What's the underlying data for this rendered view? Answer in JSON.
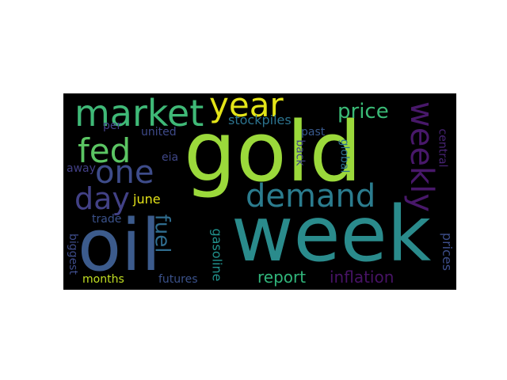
{
  "word_cloud": {
    "background": "#000000",
    "words": [
      {
        "text": "gold",
        "color": "#9bd93b"
      },
      {
        "text": "week",
        "color": "#2a8b8c"
      },
      {
        "text": "oil",
        "color": "#3c5b8c"
      },
      {
        "text": "market",
        "color": "#3fb977"
      },
      {
        "text": "fed",
        "color": "#5bc563"
      },
      {
        "text": "year",
        "color": "#e3e418"
      },
      {
        "text": "one",
        "color": "#3e4c8a"
      },
      {
        "text": "demand",
        "color": "#2b7c8e"
      },
      {
        "text": "weekly",
        "color": "#48186a"
      },
      {
        "text": "day",
        "color": "#424186"
      },
      {
        "text": "price",
        "color": "#3aba76"
      },
      {
        "text": "fuel",
        "color": "#2f6c8e"
      },
      {
        "text": "report",
        "color": "#31b57b"
      },
      {
        "text": "inflation",
        "color": "#471365"
      },
      {
        "text": "stockpiles",
        "color": "#2c738e"
      },
      {
        "text": "june",
        "color": "#e5e419"
      },
      {
        "text": "united",
        "color": "#3e4a89"
      },
      {
        "text": "past",
        "color": "#38598c"
      },
      {
        "text": "per",
        "color": "#424186"
      },
      {
        "text": "eia",
        "color": "#3f4788"
      },
      {
        "text": "away",
        "color": "#423f85"
      },
      {
        "text": "trade",
        "color": "#3b528b"
      },
      {
        "text": "biggest",
        "color": "#3e4c8a"
      },
      {
        "text": "months",
        "color": "#c2df23"
      },
      {
        "text": "futures",
        "color": "#3b528b"
      },
      {
        "text": "gasoline",
        "color": "#21918c"
      },
      {
        "text": "back",
        "color": "#414487"
      },
      {
        "text": "global",
        "color": "#2d708e"
      },
      {
        "text": "central",
        "color": "#482475"
      },
      {
        "text": "prices",
        "color": "#3d4e8a"
      }
    ]
  }
}
